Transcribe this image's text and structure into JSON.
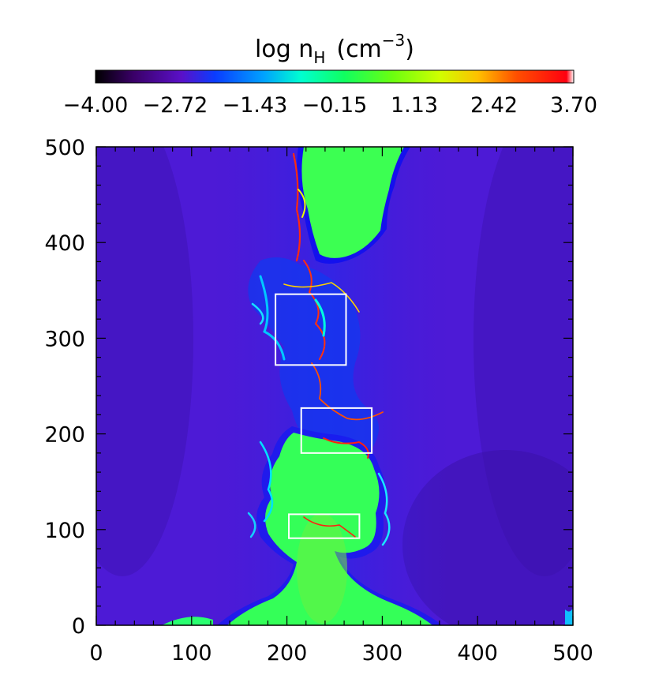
{
  "chart_data": {
    "type": "heatmap",
    "colorbar": {
      "title_main": "log n",
      "title_sub": "H",
      "title_unit_open": "(cm",
      "title_unit_exp": "−3",
      "title_unit_close": ")",
      "min": -4.0,
      "max": 3.7,
      "ticks": [
        "−4.00",
        "−2.72",
        "−1.43",
        "−0.15",
        "1.13",
        "2.42",
        "3.70"
      ],
      "colormap": [
        "#000000",
        "#3a0068",
        "#5a10c8",
        "#0a3cff",
        "#00a0ff",
        "#00ffd0",
        "#10ff60",
        "#6aff10",
        "#d0ff00",
        "#ffc000",
        "#ff5000",
        "#ff0010",
        "#ffffff"
      ]
    },
    "x_axis": {
      "range": [
        0,
        500
      ],
      "ticks": [
        "0",
        "100",
        "200",
        "300",
        "400",
        "500"
      ]
    },
    "y_axis": {
      "range": [
        0,
        500
      ],
      "ticks": [
        "0",
        "100",
        "200",
        "300",
        "400",
        "500"
      ]
    },
    "background_log_density": -2.7,
    "dense_gas_log_density": 0.4,
    "regions_of_interest": [
      {
        "x_min": 188,
        "x_max": 262,
        "y_min": 272,
        "y_max": 346
      },
      {
        "x_min": 215,
        "x_max": 289,
        "y_min": 180,
        "y_max": 227
      },
      {
        "x_min": 202,
        "x_max": 276,
        "y_min": 91,
        "y_max": 116
      }
    ]
  }
}
